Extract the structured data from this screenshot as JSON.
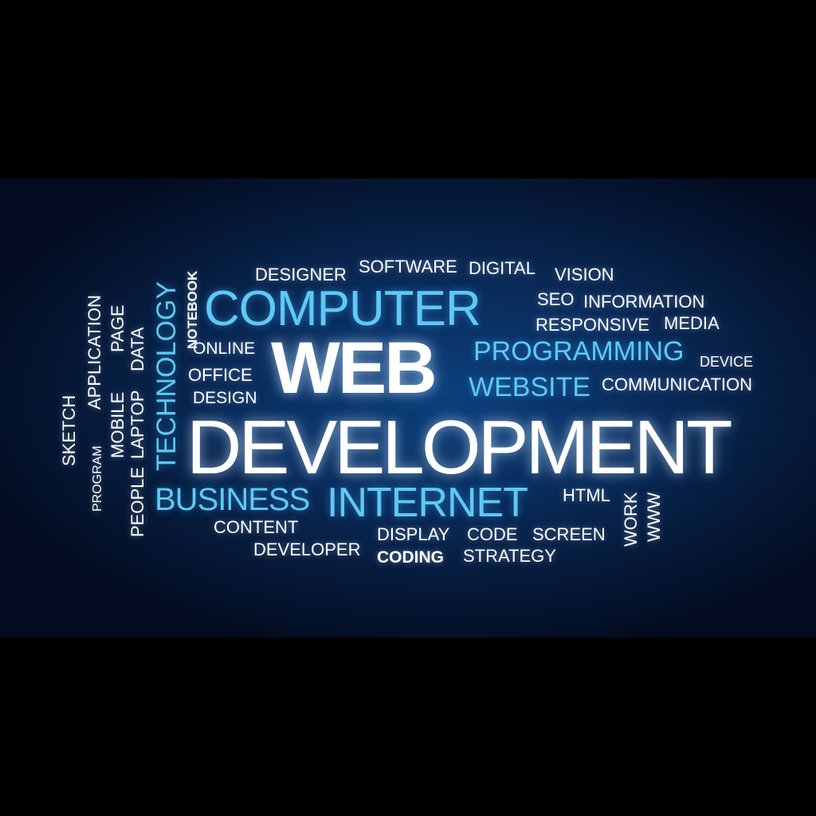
{
  "colors": {
    "background": "#061a3a",
    "letterbox": "#000000",
    "text_white": "#ffffff",
    "text_blue": "#5fc8f4"
  },
  "words": {
    "web": "WEB",
    "development": "DEVELOPMENT",
    "computer": "COMPUTER",
    "internet": "INTERNET",
    "business": "BUSINESS",
    "programming": "PROGRAMMING",
    "website": "WEBSITE",
    "technology": "TECHNOLOGY",
    "designer": "DESIGNER",
    "software": "SOFTWARE",
    "digital": "DIGITAL",
    "vision": "VISION",
    "seo": "SEO",
    "information": "INFORMATION",
    "responsive": "RESPONSIVE",
    "media": "MEDIA",
    "device": "DEVICE",
    "communication": "COMMUNICATION",
    "notebook": "NOTEBOOK",
    "online": "ONLINE",
    "office": "OFFICE",
    "design": "DESIGN",
    "application": "APPLICATION",
    "page": "PAGE",
    "data": "DATA",
    "laptop": "LAPTOP",
    "mobile": "MOBILE",
    "people": "PEOPLE",
    "sketch": "SKETCH",
    "program": "PROGRAM",
    "content": "CONTENT",
    "developer": "DEVELOPER",
    "display": "DISPLAY",
    "code": "CODE",
    "screen": "SCREEN",
    "coding": "CODING",
    "strategy": "STRATEGY",
    "html": "HTML",
    "work": "WORK",
    "www": "WWW"
  }
}
